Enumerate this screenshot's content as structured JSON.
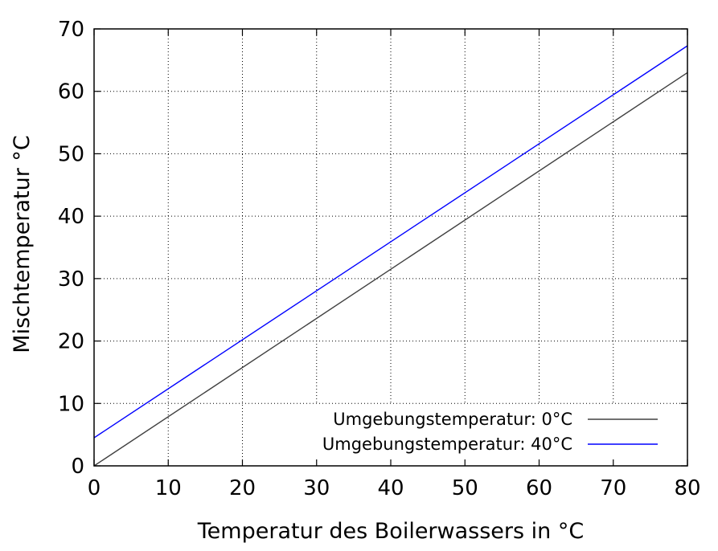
{
  "chart_data": {
    "type": "line",
    "xlabel": "Temperatur des Boilerwassers in °C",
    "ylabel": "Mischtemperatur °C",
    "xlim": [
      0,
      80
    ],
    "ylim": [
      0,
      70
    ],
    "xticks": [
      0,
      10,
      20,
      30,
      40,
      50,
      60,
      70,
      80
    ],
    "yticks": [
      0,
      10,
      20,
      30,
      40,
      50,
      60,
      70
    ],
    "grid": true,
    "legend_position": "bottom-right",
    "series": [
      {
        "name": "Umgebungstemperatur: 0°C",
        "color": "#404040",
        "x": [
          0,
          80
        ],
        "y": [
          0,
          63.0
        ]
      },
      {
        "name": "Umgebungstemperatur: 40°C",
        "color": "#0000ff",
        "x": [
          0,
          80
        ],
        "y": [
          4.5,
          67.3
        ]
      }
    ]
  }
}
